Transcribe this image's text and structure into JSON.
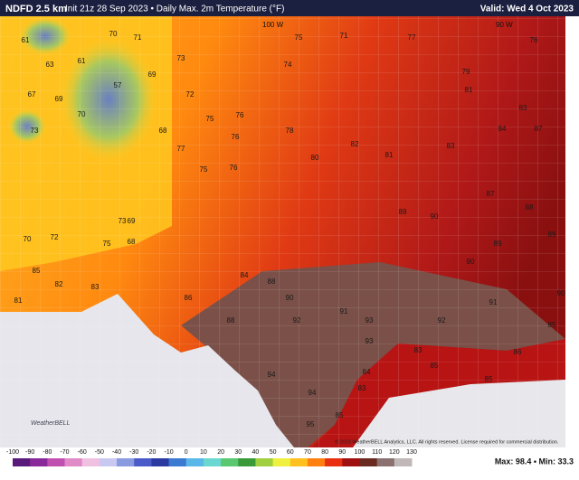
{
  "header": {
    "title": "NDFD 2.5 km",
    "subtitle": "Init 21z 28 Sep 2023 • Daily Max. 2m Temperature (°F)",
    "valid": "Valid: Wed 4 Oct 2023"
  },
  "map": {
    "meridians": [
      "100 W",
      "90 W"
    ],
    "temperatures": [
      61,
      63,
      61,
      70,
      71,
      57,
      69,
      67,
      69,
      70,
      73,
      68,
      73,
      72,
      75,
      76,
      77,
      76,
      75,
      76,
      78,
      80,
      82,
      81,
      83,
      84,
      87,
      83,
      81,
      79,
      76,
      77,
      74,
      71,
      75,
      70,
      72,
      75,
      68,
      73,
      69,
      82,
      85,
      81,
      83,
      86,
      84,
      88,
      90,
      92,
      91,
      93,
      94,
      94,
      95,
      85,
      83,
      84,
      83,
      85,
      86,
      85,
      91,
      90,
      89,
      87,
      88,
      90,
      89,
      90,
      85,
      89,
      92,
      93,
      88
    ],
    "copyright": "© 2023 WeatherBELL Analytics, LLC. All rights reserved. License required for commercial distribution.",
    "logo": "WeatherBELL"
  },
  "colorbar": {
    "ticks": [
      -100,
      -90,
      -80,
      -70,
      -60,
      -50,
      -40,
      -30,
      -20,
      -10,
      0,
      10,
      20,
      30,
      40,
      50,
      60,
      70,
      80,
      90,
      100,
      110,
      120,
      130
    ],
    "colors": [
      "#5a1a7a",
      "#8a2a9a",
      "#c050b0",
      "#e08ac8",
      "#f0c0e0",
      "#c8c8f0",
      "#8a9ae0",
      "#4a5ac8",
      "#2a3aa0",
      "#3a7ad0",
      "#5ab8e8",
      "#6ad8d0",
      "#5ac870",
      "#3a9a3a",
      "#a0d040",
      "#f0f040",
      "#ffc020",
      "#ff8010",
      "#e83010",
      "#a01010",
      "#6a2a20",
      "#8a7070",
      "#c0b8b8"
    ]
  },
  "stats": "Max: 98.4 • Min: 33.3"
}
